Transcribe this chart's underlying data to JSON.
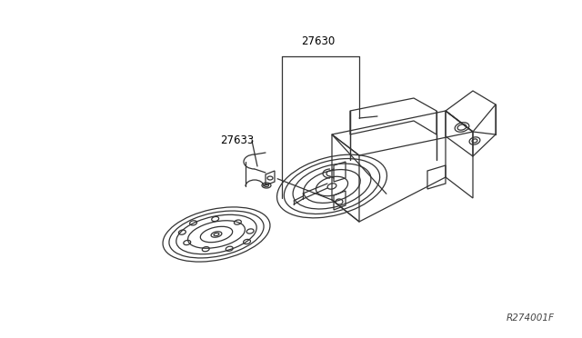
{
  "bg_color": "#ffffff",
  "line_color": "#333333",
  "label_27630": "27630",
  "label_27633": "27633",
  "ref_code": "R274001F",
  "label_fontsize": 8.5,
  "ref_fontsize": 7.5
}
